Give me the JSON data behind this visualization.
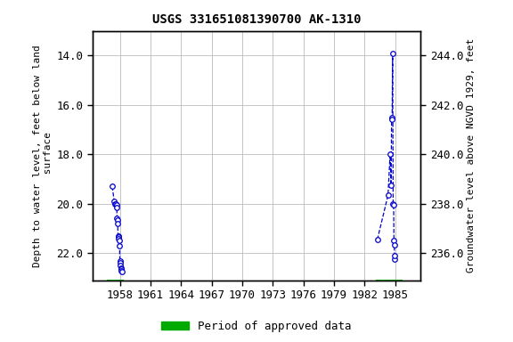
{
  "title": "USGS 331651081390700 AK-1310",
  "ylabel_left": "Depth to water level, feet below land\n surface",
  "ylabel_right": "Groundwater level above NGVD 1929, feet",
  "xlim": [
    1955.3,
    1987.5
  ],
  "ylim_left": [
    23.1,
    13.0
  ],
  "ylim_right": [
    234.9,
    245.0
  ],
  "xticks": [
    1958,
    1961,
    1964,
    1967,
    1970,
    1973,
    1976,
    1979,
    1982,
    1985
  ],
  "yticks_left": [
    14.0,
    16.0,
    18.0,
    20.0,
    22.0
  ],
  "yticks_right": [
    236.0,
    238.0,
    240.0,
    242.0,
    244.0
  ],
  "series1_x": [
    1957.25,
    1957.45,
    1957.55,
    1957.6,
    1957.65,
    1957.7,
    1957.72,
    1957.75,
    1957.78,
    1957.82,
    1957.86,
    1957.9,
    1957.94,
    1957.97,
    1958.0,
    1958.03,
    1958.06,
    1958.09,
    1958.12,
    1958.15,
    1958.18
  ],
  "series1_y": [
    19.3,
    19.9,
    20.0,
    20.0,
    20.05,
    20.15,
    20.6,
    20.65,
    20.8,
    21.3,
    21.35,
    21.4,
    21.5,
    21.7,
    22.3,
    22.4,
    22.5,
    22.6,
    22.65,
    22.7,
    22.75
  ],
  "series2_x": [
    1983.25,
    1984.3,
    1984.5,
    1984.6,
    1984.65,
    1984.7,
    1984.75,
    1984.8,
    1984.85,
    1984.88,
    1984.91,
    1984.94,
    1984.97
  ],
  "series2_y": [
    21.45,
    19.65,
    18.0,
    19.25,
    16.5,
    16.6,
    13.9,
    20.0,
    20.05,
    21.5,
    21.65,
    22.25,
    22.1
  ],
  "bar1_xstart": 1956.7,
  "bar1_xend": 1958.35,
  "bar2_xstart": 1983.1,
  "bar2_xend": 1985.7,
  "bar_color": "#00aa00",
  "line_color": "#0000cc",
  "marker_facecolor": "#ffffff",
  "marker_edgecolor": "#0000cc",
  "bg_color": "#ffffff",
  "grid_color": "#bbbbbb",
  "title_fontsize": 10,
  "axis_label_fontsize": 8,
  "tick_fontsize": 9
}
